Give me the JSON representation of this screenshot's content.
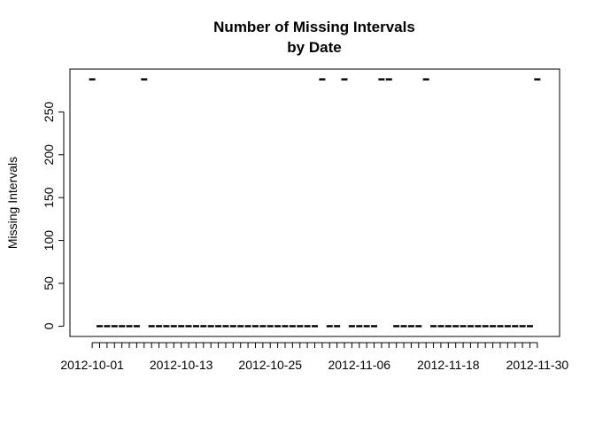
{
  "chart_data": {
    "type": "scatter",
    "title_lines": [
      "Number of Missing Intervals",
      "by Date"
    ],
    "xlabel": "",
    "ylabel": "Missing Intervals",
    "x_tick_labels": [
      "2012-10-01",
      "2012-10-13",
      "2012-10-25",
      "2012-11-06",
      "2012-11-18",
      "2012-11-30"
    ],
    "x_tick_dates": [
      "2012-10-01",
      "2012-10-13",
      "2012-10-25",
      "2012-11-06",
      "2012-11-18",
      "2012-11-30"
    ],
    "y_ticks": [
      0,
      50,
      100,
      150,
      200,
      250
    ],
    "ylim": [
      -12,
      300
    ],
    "xlim": [
      "2012-09-28",
      "2012-12-03"
    ],
    "grid": false,
    "legend": "none",
    "marker": "horizontal-dash",
    "color": "#000000",
    "x": [
      "2012-10-01",
      "2012-10-02",
      "2012-10-03",
      "2012-10-04",
      "2012-10-05",
      "2012-10-06",
      "2012-10-07",
      "2012-10-08",
      "2012-10-09",
      "2012-10-10",
      "2012-10-11",
      "2012-10-12",
      "2012-10-13",
      "2012-10-14",
      "2012-10-15",
      "2012-10-16",
      "2012-10-17",
      "2012-10-18",
      "2012-10-19",
      "2012-10-20",
      "2012-10-21",
      "2012-10-22",
      "2012-10-23",
      "2012-10-24",
      "2012-10-25",
      "2012-10-26",
      "2012-10-27",
      "2012-10-28",
      "2012-10-29",
      "2012-10-30",
      "2012-10-31",
      "2012-11-01",
      "2012-11-02",
      "2012-11-03",
      "2012-11-04",
      "2012-11-05",
      "2012-11-06",
      "2012-11-07",
      "2012-11-08",
      "2012-11-09",
      "2012-11-10",
      "2012-11-11",
      "2012-11-12",
      "2012-11-13",
      "2012-11-14",
      "2012-11-15",
      "2012-11-16",
      "2012-11-17",
      "2012-11-18",
      "2012-11-19",
      "2012-11-20",
      "2012-11-21",
      "2012-11-22",
      "2012-11-23",
      "2012-11-24",
      "2012-11-25",
      "2012-11-26",
      "2012-11-27",
      "2012-11-28",
      "2012-11-29",
      "2012-11-30"
    ],
    "values": [
      288,
      0,
      0,
      0,
      0,
      0,
      0,
      288,
      0,
      0,
      0,
      0,
      0,
      0,
      0,
      0,
      0,
      0,
      0,
      0,
      0,
      0,
      0,
      0,
      0,
      0,
      0,
      0,
      0,
      0,
      0,
      288,
      0,
      0,
      288,
      0,
      0,
      0,
      0,
      288,
      288,
      0,
      0,
      0,
      0,
      288,
      0,
      0,
      0,
      0,
      0,
      0,
      0,
      0,
      0,
      0,
      0,
      0,
      0,
      0,
      288
    ]
  }
}
